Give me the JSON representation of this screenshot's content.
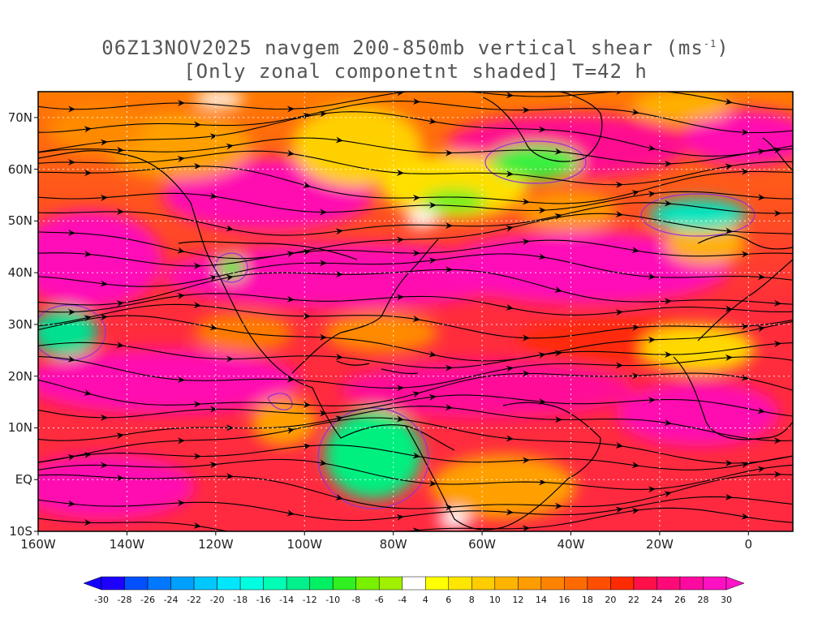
{
  "title": {
    "line1_prefix": "06Z13NOV2025 navgem 200-850mb vertical shear (ms",
    "line1_sup": "-1",
    "line1_suffix": ")",
    "line2": "[Only zonal componetnt shaded] T=42 h"
  },
  "map": {
    "lon_range": [
      -160,
      10
    ],
    "lat_range": [
      -10,
      75
    ],
    "y_labels": [
      "70N",
      "60N",
      "50N",
      "40N",
      "30N",
      "20N",
      "10N",
      "EQ",
      "10S"
    ],
    "y_label_lats": [
      70,
      60,
      50,
      40,
      30,
      20,
      10,
      0,
      -10
    ],
    "x_labels": [
      "160W",
      "140W",
      "120W",
      "100W",
      "80W",
      "60W",
      "40W",
      "20W",
      "0"
    ],
    "x_label_lons": [
      -160,
      -140,
      -120,
      -100,
      -80,
      -60,
      -40,
      -20,
      0
    ],
    "grid": true,
    "streamlines": true
  },
  "colorbar": {
    "labels": [
      "-30",
      "-28",
      "-26",
      "-24",
      "-22",
      "-20",
      "-18",
      "-16",
      "-14",
      "-12",
      "-10",
      "-8",
      "-6",
      "-4",
      "4",
      "6",
      "8",
      "10",
      "12",
      "14",
      "16",
      "18",
      "20",
      "22",
      "24",
      "26",
      "28",
      "30"
    ],
    "colors": [
      "#1e00ff",
      "#0050ff",
      "#0078ff",
      "#00a0ff",
      "#00c8ff",
      "#00e6ff",
      "#00ffe0",
      "#00ffb4",
      "#00f08c",
      "#00f064",
      "#30f020",
      "#78f000",
      "#a0f000",
      "#ffffff",
      "#ffff00",
      "#ffe600",
      "#ffcc00",
      "#ffb400",
      "#ff9c00",
      "#ff8200",
      "#ff6a00",
      "#ff4e00",
      "#ff2a00",
      "#ff1048",
      "#ff0a78",
      "#ff0aa0",
      "#ff10c0"
    ],
    "low_color": "#1400ff",
    "high_color": "#ff14c8"
  }
}
